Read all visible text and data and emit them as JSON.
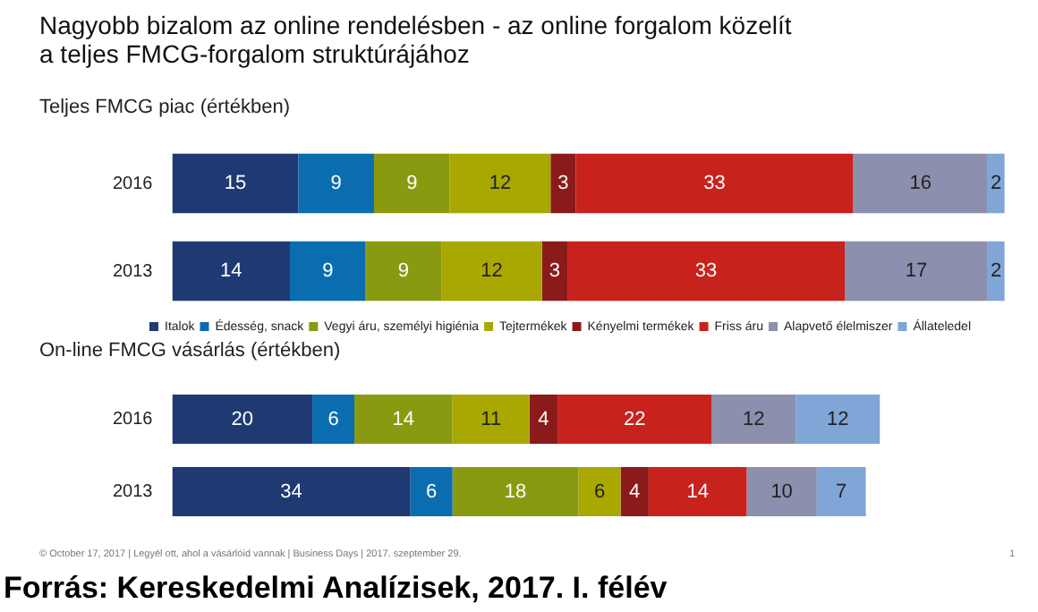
{
  "chart_data": [
    {
      "type": "bar",
      "title": "Nagyobb bizalom az online rendelésben - az online forgalom közelít\na teljes FMCG-forgalom struktúrájához",
      "subtitle": "Teljes FMCG piac (értékben)",
      "orientation": "horizontal",
      "stacked": true,
      "data_labels": true,
      "legend": "bottom",
      "tick_labels": "y",
      "categories": [
        "2016",
        "2013"
      ],
      "series": [
        {
          "name": "Italok",
          "color": "#1f3a73",
          "values": [
            15,
            14
          ]
        },
        {
          "name": "Édesség, snack",
          "color": "#0a6db0",
          "values": [
            9,
            9
          ]
        },
        {
          "name": "Vegyi áru, személyi higiénia",
          "color": "#8a9a10",
          "values": [
            9,
            9
          ]
        },
        {
          "name": "Tejtermékek",
          "color": "#a9a800",
          "values": [
            12,
            12
          ]
        },
        {
          "name": "Kényelmi termékek",
          "color": "#8b1a1a",
          "values": [
            3,
            3
          ]
        },
        {
          "name": "Friss áru",
          "color": "#c8221c",
          "values": [
            33,
            33
          ]
        },
        {
          "name": "Alapvető élelmiszer",
          "color": "#8c8fad",
          "values": [
            16,
            17
          ]
        },
        {
          "name": "Állateledel",
          "color": "#7fa6d6",
          "values": [
            2,
            2
          ]
        }
      ]
    },
    {
      "type": "bar",
      "subtitle": "On-line FMCG vásárlás (értékben)",
      "orientation": "horizontal",
      "stacked": true,
      "data_labels": true,
      "tick_labels": "y",
      "categories": [
        "2016",
        "2013"
      ],
      "series": [
        {
          "color": "#1f3a73",
          "values": [
            20,
            34
          ]
        },
        {
          "color": "#0a6db0",
          "values": [
            6,
            6
          ]
        },
        {
          "color": "#8a9a10",
          "values": [
            14,
            18
          ]
        },
        {
          "color": "#a9a800",
          "values": [
            11,
            6
          ]
        },
        {
          "color": "#8b1a1a",
          "values": [
            4,
            4
          ]
        },
        {
          "color": "#c8221c",
          "values": [
            22,
            14
          ]
        },
        {
          "color": "#8c8fad",
          "values": [
            12,
            10
          ]
        },
        {
          "color": "#7fa6d6",
          "values": [
            12,
            7
          ]
        }
      ],
      "annotations": [
        "© October 17, 2017 | Legyél ott, ahol a vásárlóid vannak | Business Days | 2017. szeptember 29.",
        "1",
        "Forrás: Kereskedelmi Analízisek, 2017. I. félév"
      ]
    }
  ]
}
